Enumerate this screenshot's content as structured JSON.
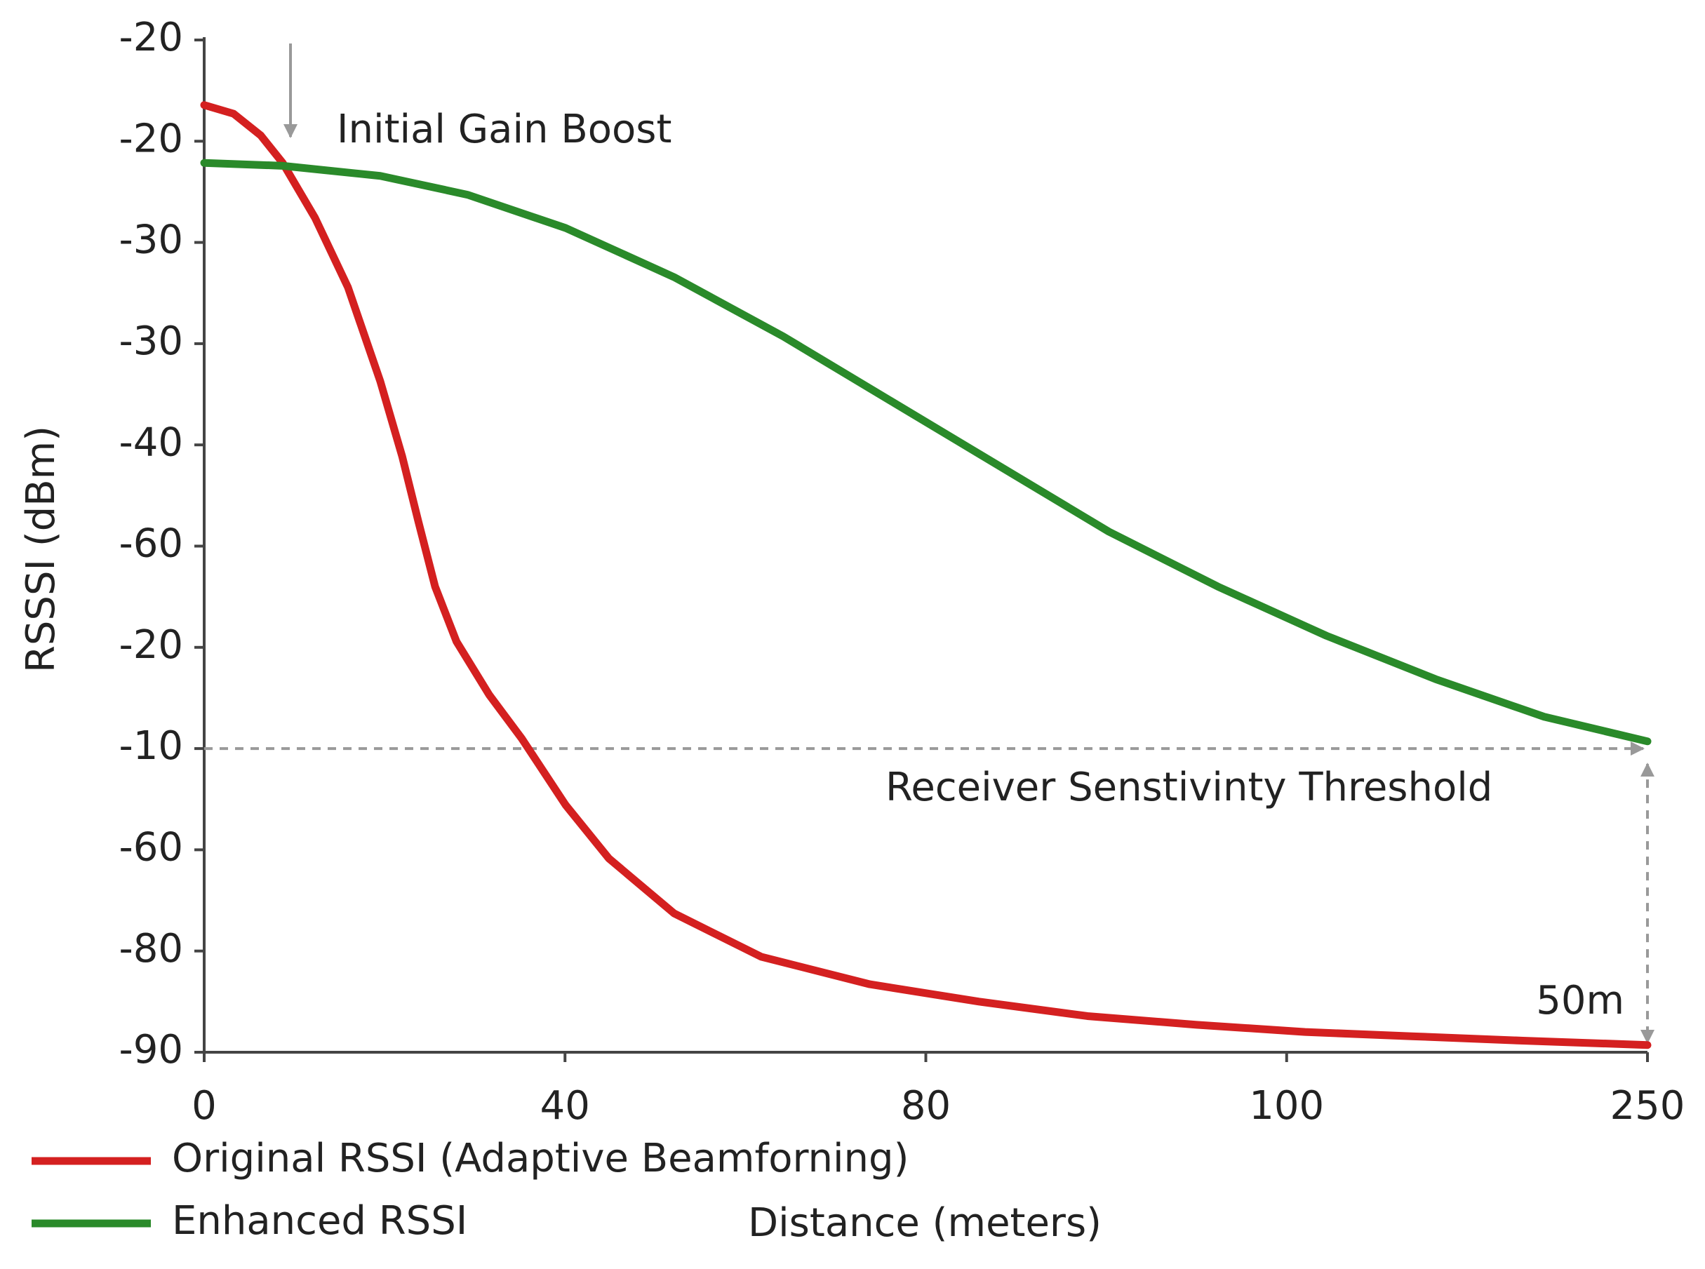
{
  "chart_data": {
    "type": "line",
    "y_label": "RSSSI (dBm)",
    "x_label": "Distance (meters)",
    "xlim": [
      0,
      250
    ],
    "xticks": [
      0,
      {
        "value": 62.5,
        "label": "40"
      },
      {
        "value": 125,
        "label": "80"
      },
      {
        "value": 187.5,
        "label": "100"
      },
      250
    ],
    "ylim": [
      -90,
      -20
    ],
    "yticks": [
      -20,
      {
        "value": -27,
        "label": "-20"
      },
      {
        "value": -34,
        "label": "-30"
      },
      {
        "value": -41,
        "label": "-30"
      },
      {
        "value": -48,
        "label": "-40"
      },
      {
        "value": -55,
        "label": "-60"
      },
      {
        "value": -62,
        "label": "-20"
      },
      {
        "value": -69,
        "label": "-10"
      },
      {
        "value": -76,
        "label": "-60"
      },
      {
        "value": -83,
        "label": "-80"
      },
      -90
    ],
    "series": [
      {
        "name": "Original RSSI (Adaptive Beamforning)",
        "color": "#d42020",
        "x": [
          0,
          5.1,
          9.8,
          13.6,
          19.2,
          24.9,
          30.5,
          34.3,
          37.1,
          40.0,
          43.7,
          49.4,
          55.0,
          62.6,
          70.1,
          81.4,
          96.5,
          115.3,
          134.2,
          153.0,
          171.9,
          190.7,
          209.5,
          228.4,
          250
        ],
        "values": [
          -24.5,
          -25.1,
          -26.6,
          -28.5,
          -32.3,
          -37.1,
          -43.6,
          -48.8,
          -53.3,
          -57.8,
          -61.6,
          -65.3,
          -68.3,
          -72.9,
          -76.6,
          -80.4,
          -83.4,
          -85.3,
          -86.5,
          -87.5,
          -88.1,
          -88.6,
          -88.9,
          -89.2,
          -89.5
        ]
      },
      {
        "name": "Enhanced RSSI",
        "color": "#2a8a2a",
        "x": [
          0,
          13.6,
          30.5,
          45.6,
          62.6,
          81.4,
          100.3,
          119.1,
          137.9,
          156.7,
          175.6,
          194.4,
          213.3,
          232.1,
          250
        ],
        "values": [
          -28.5,
          -28.7,
          -29.4,
          -30.7,
          -33.0,
          -36.4,
          -40.5,
          -45.0,
          -49.5,
          -54.0,
          -57.8,
          -61.2,
          -64.2,
          -66.8,
          -68.5
        ]
      }
    ],
    "annotations": [
      "Initial Gain Boost",
      "Receiver Senstivinty Threshold",
      "50m"
    ]
  }
}
